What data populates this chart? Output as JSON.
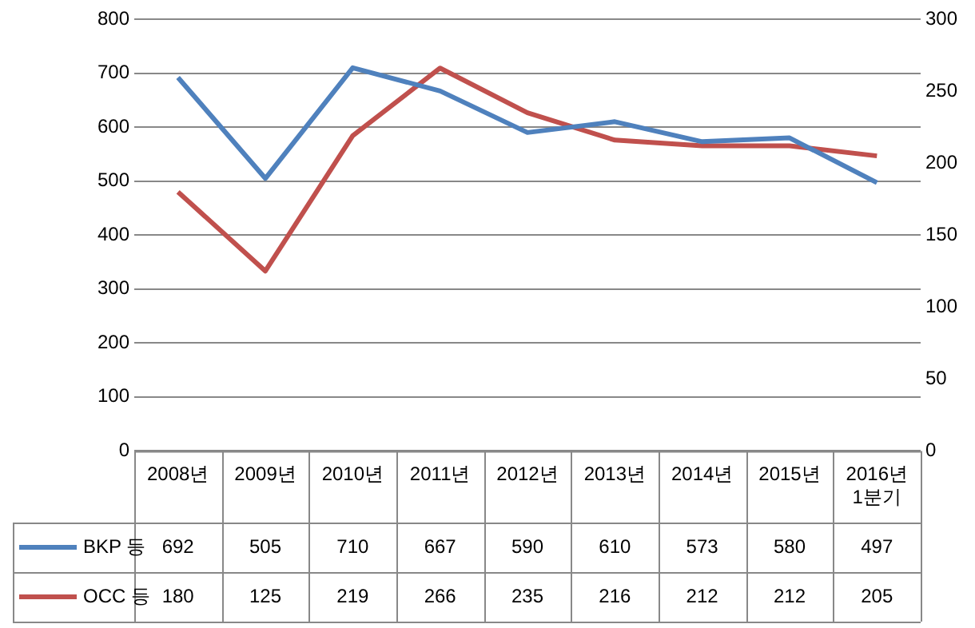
{
  "chart_data": {
    "type": "line",
    "categories": [
      "2008년",
      "2009년",
      "2010년",
      "2011년",
      "2012년",
      "2013년",
      "2014년",
      "2015년",
      "2016년 1분기"
    ],
    "series": [
      {
        "name": "BKP 등",
        "color": "#4f81bd",
        "values": [
          692,
          505,
          710,
          667,
          590,
          610,
          573,
          580,
          497
        ]
      },
      {
        "name": "OCC 등",
        "color": "#c0504d",
        "axis": "y2",
        "values": [
          180,
          125,
          219,
          266,
          235,
          216,
          212,
          212,
          205
        ]
      }
    ],
    "ylim": [
      0,
      800
    ],
    "yticks": [
      0,
      100,
      200,
      300,
      400,
      500,
      600,
      700,
      800
    ],
    "y2lim": [
      0,
      300
    ],
    "y2ticks": [
      0,
      50,
      100,
      150,
      200,
      250,
      300
    ],
    "grid": "y",
    "legend": "bottom",
    "data_labels": true,
    "marker": "none",
    "line_style": "solid"
  }
}
